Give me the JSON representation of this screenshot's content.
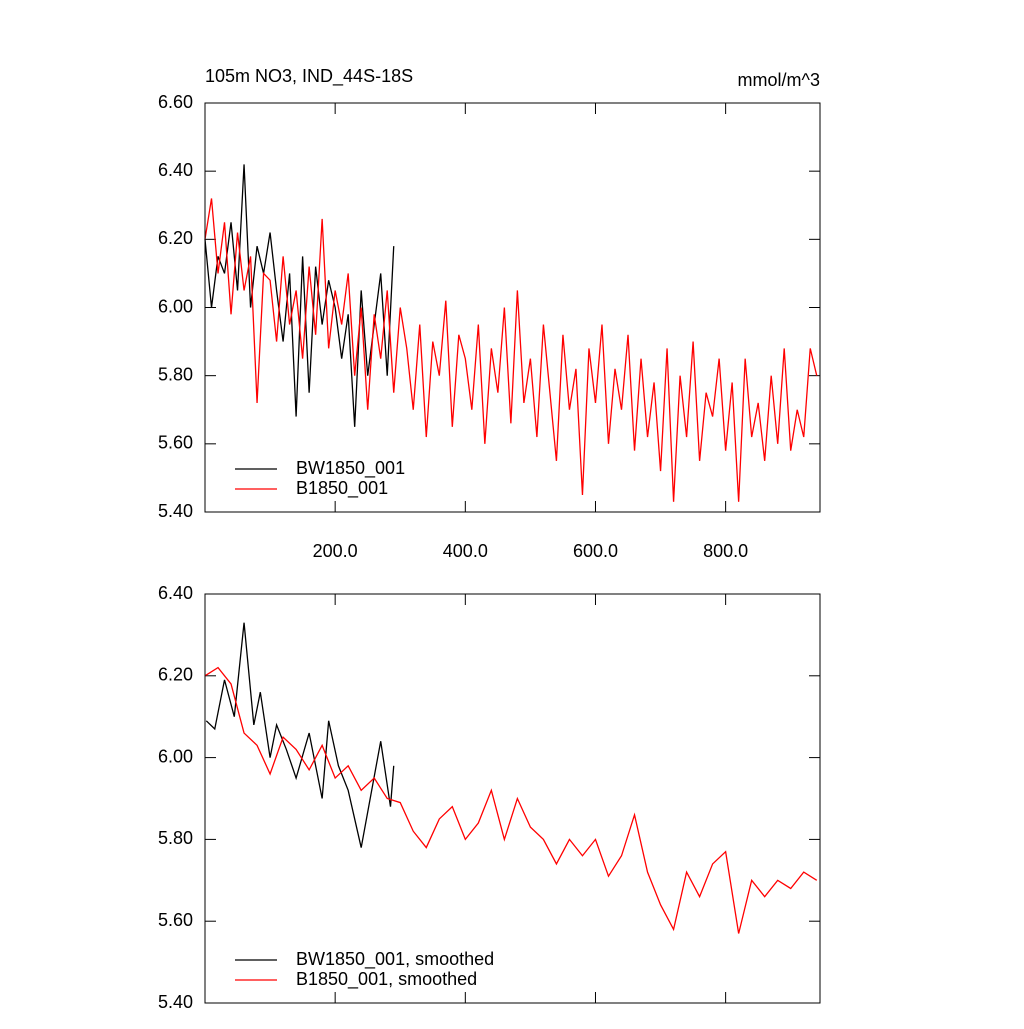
{
  "chart_data": [
    {
      "type": "line",
      "title": "105m NO3, IND_44S-18S",
      "y_units": "mmol/m^3",
      "xlim": [
        0,
        945
      ],
      "ylim": [
        5.4,
        6.6
      ],
      "xticks": [
        {
          "value": 200,
          "label": "200.0"
        },
        {
          "value": 400,
          "label": "400.0"
        },
        {
          "value": 600,
          "label": "600.0"
        },
        {
          "value": 800,
          "label": "800.0"
        }
      ],
      "yticks": [
        {
          "value": 5.4,
          "label": "5.40"
        },
        {
          "value": 5.6,
          "label": "5.60"
        },
        {
          "value": 5.8,
          "label": "5.80"
        },
        {
          "value": 6.0,
          "label": "6.00"
        },
        {
          "value": 6.2,
          "label": "6.20"
        },
        {
          "value": 6.4,
          "label": "6.40"
        },
        {
          "value": 6.6,
          "label": "6.60"
        }
      ],
      "legend": "lower left",
      "series": [
        {
          "name": "BW1850_001",
          "color": "#000000",
          "x": [
            0,
            10,
            20,
            30,
            40,
            50,
            60,
            70,
            80,
            90,
            100,
            110,
            120,
            130,
            140,
            150,
            160,
            170,
            180,
            190,
            200,
            210,
            220,
            230,
            240,
            250,
            260,
            270,
            280,
            290
          ],
          "values": [
            6.2,
            6.0,
            6.15,
            6.1,
            6.25,
            6.05,
            6.42,
            6.0,
            6.18,
            6.1,
            6.22,
            6.05,
            5.9,
            6.1,
            5.68,
            6.15,
            5.75,
            6.12,
            5.95,
            6.08,
            6.0,
            5.85,
            5.98,
            5.65,
            6.05,
            5.8,
            5.95,
            6.1,
            5.8,
            6.18
          ]
        },
        {
          "name": "B1850_001",
          "color": "#ff0000",
          "x": [
            0,
            10,
            20,
            30,
            40,
            50,
            60,
            70,
            80,
            90,
            100,
            110,
            120,
            130,
            140,
            150,
            160,
            170,
            180,
            190,
            200,
            210,
            220,
            230,
            240,
            250,
            260,
            270,
            280,
            290,
            300,
            310,
            320,
            330,
            340,
            350,
            360,
            370,
            380,
            390,
            400,
            410,
            420,
            430,
            440,
            450,
            460,
            470,
            480,
            490,
            500,
            510,
            520,
            530,
            540,
            550,
            560,
            570,
            580,
            590,
            600,
            610,
            620,
            630,
            640,
            650,
            660,
            670,
            680,
            690,
            700,
            710,
            720,
            730,
            740,
            750,
            760,
            770,
            780,
            790,
            800,
            810,
            820,
            830,
            840,
            850,
            860,
            870,
            880,
            890,
            900,
            910,
            920,
            930,
            940
          ],
          "values": [
            6.2,
            6.32,
            6.1,
            6.25,
            5.98,
            6.22,
            6.05,
            6.15,
            5.72,
            6.1,
            6.08,
            5.9,
            6.15,
            5.95,
            6.05,
            5.85,
            6.12,
            5.92,
            6.26,
            5.88,
            6.05,
            5.95,
            6.1,
            5.8,
            6.0,
            5.7,
            5.98,
            5.85,
            6.05,
            5.75,
            6.0,
            5.88,
            5.7,
            5.95,
            5.62,
            5.9,
            5.8,
            6.02,
            5.65,
            5.92,
            5.85,
            5.7,
            5.95,
            5.6,
            5.88,
            5.75,
            6.0,
            5.66,
            6.05,
            5.72,
            5.85,
            5.62,
            5.95,
            5.75,
            5.55,
            5.92,
            5.7,
            5.82,
            5.45,
            5.88,
            5.72,
            5.95,
            5.6,
            5.82,
            5.7,
            5.92,
            5.58,
            5.85,
            5.62,
            5.78,
            5.52,
            5.88,
            5.43,
            5.8,
            5.62,
            5.9,
            5.55,
            5.75,
            5.68,
            5.85,
            5.58,
            5.78,
            5.43,
            5.85,
            5.62,
            5.72,
            5.55,
            5.8,
            5.6,
            5.88,
            5.58,
            5.7,
            5.62,
            5.88,
            5.8
          ]
        }
      ]
    },
    {
      "type": "line",
      "xlim": [
        0,
        945
      ],
      "ylim": [
        5.4,
        6.4
      ],
      "yticks": [
        {
          "value": 5.4,
          "label": "5.40"
        },
        {
          "value": 5.6,
          "label": "5.60"
        },
        {
          "value": 5.8,
          "label": "5.80"
        },
        {
          "value": 6.0,
          "label": "6.00"
        },
        {
          "value": 6.2,
          "label": "6.20"
        },
        {
          "value": 6.4,
          "label": "6.40"
        }
      ],
      "legend": "lower left",
      "series": [
        {
          "name": "BW1850_001, smoothed",
          "color": "#000000",
          "x": [
            2,
            15,
            30,
            45,
            60,
            75,
            85,
            100,
            110,
            125,
            140,
            160,
            180,
            190,
            205,
            220,
            240,
            255,
            270,
            285,
            290
          ],
          "values": [
            6.09,
            6.07,
            6.19,
            6.1,
            6.33,
            6.08,
            6.16,
            6.0,
            6.08,
            6.02,
            5.95,
            6.06,
            5.9,
            6.09,
            5.98,
            5.92,
            5.78,
            5.91,
            6.04,
            5.88,
            5.98
          ]
        },
        {
          "name": "B1850_001, smoothed",
          "color": "#ff0000",
          "x": [
            0,
            20,
            40,
            60,
            80,
            100,
            120,
            140,
            160,
            180,
            200,
            220,
            240,
            260,
            280,
            300,
            320,
            340,
            360,
            380,
            400,
            420,
            440,
            460,
            480,
            500,
            520,
            540,
            560,
            580,
            600,
            620,
            640,
            660,
            680,
            700,
            720,
            740,
            760,
            780,
            800,
            820,
            840,
            860,
            880,
            900,
            920,
            940
          ],
          "values": [
            6.2,
            6.22,
            6.18,
            6.06,
            6.03,
            5.96,
            6.05,
            6.02,
            5.97,
            6.03,
            5.95,
            5.98,
            5.92,
            5.95,
            5.9,
            5.89,
            5.82,
            5.78,
            5.85,
            5.88,
            5.8,
            5.84,
            5.92,
            5.8,
            5.9,
            5.83,
            5.8,
            5.74,
            5.8,
            5.76,
            5.8,
            5.71,
            5.76,
            5.86,
            5.72,
            5.64,
            5.58,
            5.72,
            5.66,
            5.74,
            5.77,
            5.57,
            5.7,
            5.66,
            5.7,
            5.68,
            5.72,
            5.7
          ]
        }
      ]
    }
  ]
}
